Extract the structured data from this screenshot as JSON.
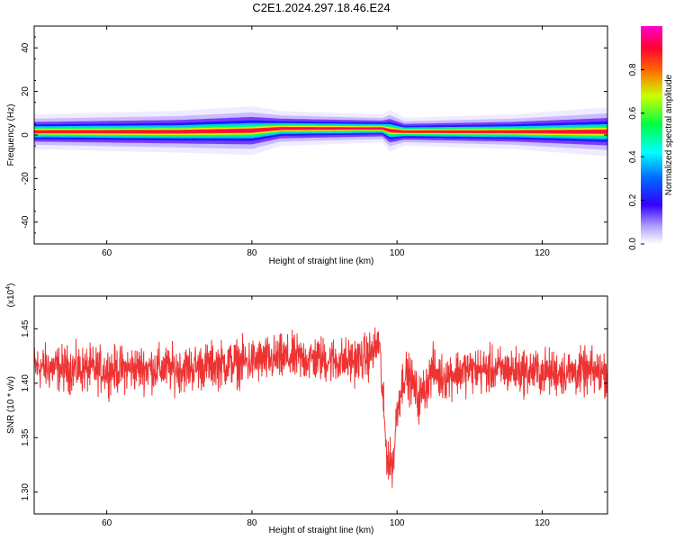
{
  "title": "C2E1.2024.297.18.46.E24",
  "chart_data": [
    {
      "type": "heatmap",
      "xlabel": "Height of straight line (km)",
      "ylabel": "Frequency (Hz)",
      "xlim": [
        50,
        129
      ],
      "ylim": [
        -50,
        50
      ],
      "xticks": [
        60,
        80,
        100,
        120
      ],
      "yticks": [
        -40,
        -20,
        0,
        20,
        40
      ],
      "grid": false,
      "band": [
        {
          "x": 50,
          "center": 1.5,
          "halfwidth": 2.5
        },
        {
          "x": 70,
          "center": 1.5,
          "halfwidth": 3.0
        },
        {
          "x": 80,
          "center": 2.0,
          "halfwidth": 3.5
        },
        {
          "x": 84,
          "center": 3.0,
          "halfwidth": 2.5
        },
        {
          "x": 98,
          "center": 3.0,
          "halfwidth": 2.0
        },
        {
          "x": 99,
          "center": 2.0,
          "halfwidth": 3.0
        },
        {
          "x": 101,
          "center": 1.5,
          "halfwidth": 2.0
        },
        {
          "x": 116,
          "center": 1.5,
          "halfwidth": 2.5
        },
        {
          "x": 129,
          "center": 1.5,
          "halfwidth": 3.5
        }
      ],
      "colorbar": {
        "label": "Normalized spectral amplitude",
        "range": [
          0,
          1
        ],
        "ticks": [
          "0.0",
          "0.2",
          "0.4",
          "0.6",
          "0.8"
        ],
        "colors": [
          "#ffffff",
          "#7f00ff",
          "#0000ff",
          "#00ffff",
          "#00ff00",
          "#ffff00",
          "#ff0000",
          "#ff00ff"
        ]
      }
    },
    {
      "type": "line",
      "xlabel": "Height of straight line (km)",
      "ylabel": "SNR (10 * v/v)",
      "yscale_note": "(x10",
      "yscale_exp": "4",
      "xlim": [
        50,
        129
      ],
      "ylim": [
        1.28,
        1.48
      ],
      "xticks": [
        60,
        80,
        100,
        120
      ],
      "yticks": [
        "1.30",
        "1.35",
        "1.40",
        "1.45"
      ],
      "color": "#ee3333",
      "series": [
        {
          "x": [
            50,
            55,
            60,
            65,
            70,
            75,
            80,
            85,
            90,
            93,
            95,
            96,
            97,
            97.5,
            98,
            98.5,
            99,
            99.5,
            100,
            101,
            102,
            103,
            104,
            105,
            106,
            108,
            110,
            115,
            120,
            125,
            129
          ],
          "y": [
            1.415,
            1.413,
            1.412,
            1.414,
            1.413,
            1.417,
            1.42,
            1.423,
            1.422,
            1.42,
            1.422,
            1.425,
            1.43,
            1.44,
            1.39,
            1.34,
            1.325,
            1.33,
            1.375,
            1.41,
            1.402,
            1.385,
            1.398,
            1.413,
            1.405,
            1.41,
            1.412,
            1.412,
            1.41,
            1.41,
            1.41
          ],
          "noise": 0.013
        }
      ]
    }
  ]
}
